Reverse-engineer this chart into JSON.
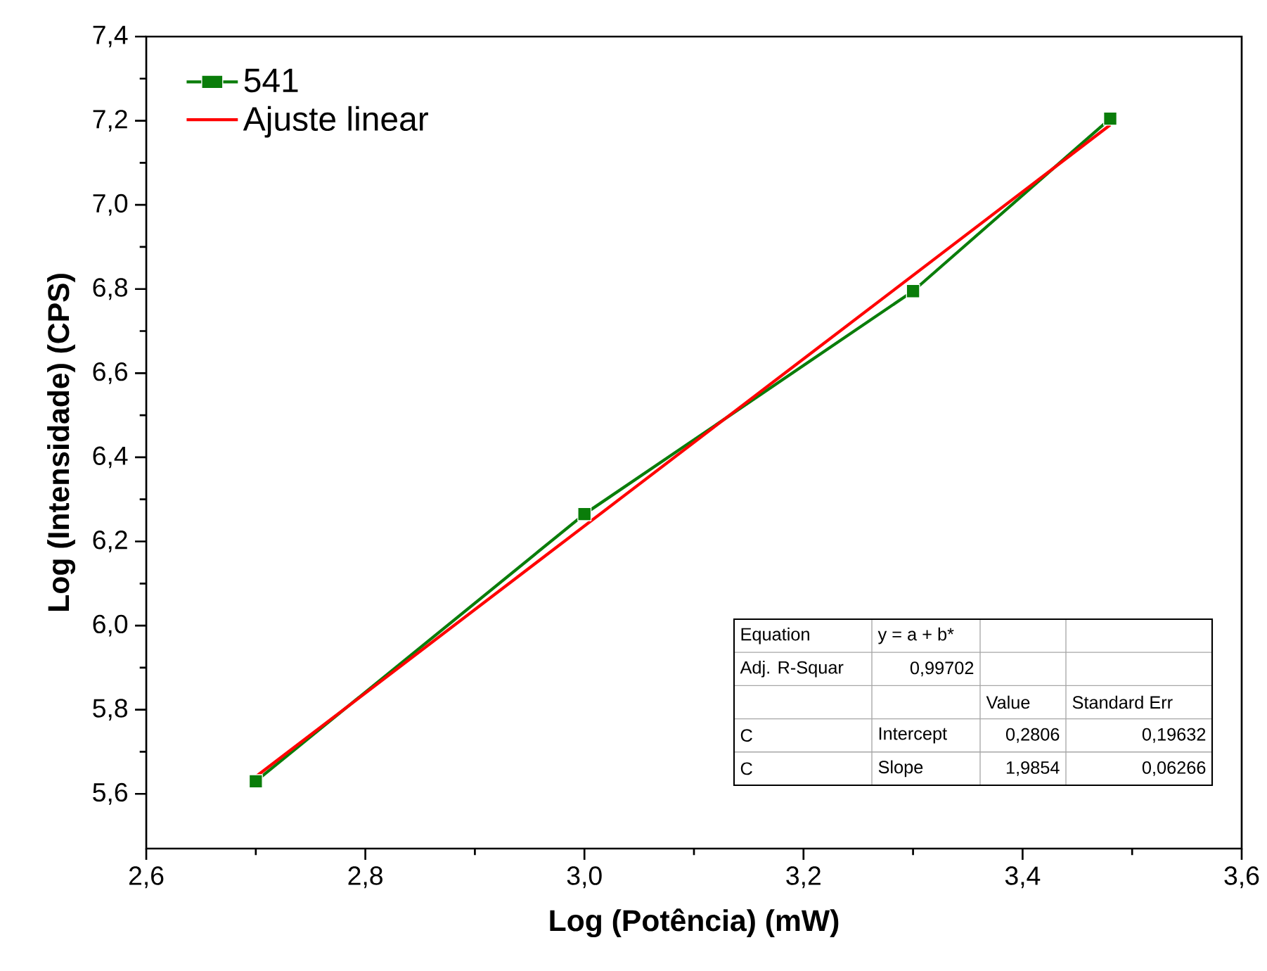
{
  "chart_data": {
    "type": "line",
    "xlabel": "Log (Potência) (mW)",
    "ylabel": "Log (Intensidade) (CPS)",
    "x": [
      2.7,
      3.0,
      3.3,
      3.48
    ],
    "series": [
      {
        "name": "541",
        "color": "#0a7d0a",
        "values": [
          5.63,
          6.265,
          6.795,
          7.205
        ],
        "marker": "square"
      },
      {
        "name": "Ajuste linear",
        "color": "#ff0000",
        "x": [
          2.7,
          3.48
        ],
        "values": [
          5.641,
          7.19
        ],
        "marker": "none"
      }
    ],
    "xlim": [
      2.6,
      3.6
    ],
    "ylim": [
      5.47,
      7.4
    ],
    "xticks": [
      {
        "value": 2.6,
        "label": "2,6"
      },
      {
        "value": 2.8,
        "label": "2,8"
      },
      {
        "value": 3.0,
        "label": "3,0"
      },
      {
        "value": 3.2,
        "label": "3,2"
      },
      {
        "value": 3.4,
        "label": "3,4"
      },
      {
        "value": 3.6,
        "label": "3,6"
      }
    ],
    "yticks": [
      {
        "value": 5.6,
        "label": "5,6"
      },
      {
        "value": 5.8,
        "label": "5,8"
      },
      {
        "value": 6.0,
        "label": "6,0"
      },
      {
        "value": 6.2,
        "label": "6,2"
      },
      {
        "value": 6.4,
        "label": "6,4"
      },
      {
        "value": 6.6,
        "label": "6,6"
      },
      {
        "value": 6.8,
        "label": "6,8"
      },
      {
        "value": 7.0,
        "label": "7,0"
      },
      {
        "value": 7.2,
        "label": "7,2"
      },
      {
        "value": 7.4,
        "label": "7,4"
      }
    ],
    "legend": "top left",
    "annotations": [
      "Equation",
      "y = a + b*",
      "Adj. R-Squar",
      "0,99702",
      "Value",
      "Standard Err",
      "C",
      "Intercept",
      "0,2806",
      "0,19632",
      "C",
      "Slope",
      "1,9854",
      "0,06266"
    ]
  }
}
